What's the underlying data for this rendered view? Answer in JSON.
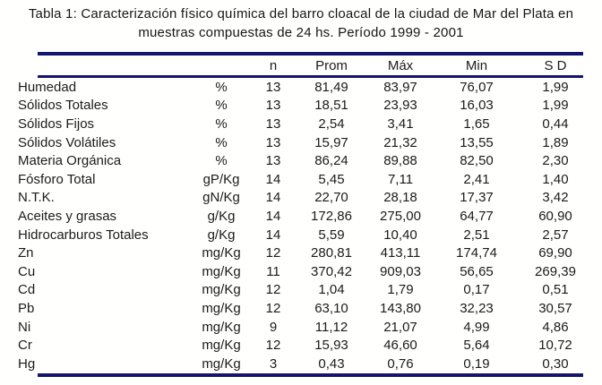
{
  "title": {
    "line1": "Tabla 1: Caracterización físico química del barro cloacal de la ciudad de Mar del Plata en",
    "line2": "muestras compuestas de 24 hs. Período 1999 - 2001"
  },
  "table": {
    "header": {
      "param": "",
      "unit": "",
      "n": "n",
      "prom": "Prom",
      "max": "Máx",
      "min": "Min",
      "sd": "S D"
    },
    "rows": [
      {
        "param": "Humedad",
        "unit": "%",
        "n": "13",
        "prom": "81,49",
        "max": "83,97",
        "min": "76,07",
        "sd": "1,99"
      },
      {
        "param": "Sólidos Totales",
        "unit": "%",
        "n": "13",
        "prom": "18,51",
        "max": "23,93",
        "min": "16,03",
        "sd": "1,99"
      },
      {
        "param": "Sólidos Fijos",
        "unit": "%",
        "n": "13",
        "prom": "2,54",
        "max": "3,41",
        "min": "1,65",
        "sd": "0,44"
      },
      {
        "param": "Sólidos Volátiles",
        "unit": "%",
        "n": "13",
        "prom": "15,97",
        "max": "21,32",
        "min": "13,55",
        "sd": "1,89"
      },
      {
        "param": "Materia Orgánica",
        "unit": "%",
        "n": "13",
        "prom": "86,24",
        "max": "89,88",
        "min": "82,50",
        "sd": "2,30"
      },
      {
        "param": "Fósforo Total",
        "unit": "gP/Kg",
        "n": "14",
        "prom": "5,45",
        "max": "7,11",
        "min": "2,41",
        "sd": "1,40"
      },
      {
        "param": "N.T.K.",
        "unit": "gN/Kg",
        "n": "14",
        "prom": "22,70",
        "max": "28,18",
        "min": "17,37",
        "sd": "3,42"
      },
      {
        "param": "Aceites y grasas",
        "unit": "g/Kg",
        "n": "14",
        "prom": "172,86",
        "max": "275,00",
        "min": "64,77",
        "sd": "60,90"
      },
      {
        "param": "Hidrocarburos Totales",
        "unit": "g/Kg",
        "n": "14",
        "prom": "5,59",
        "max": "10,40",
        "min": "2,51",
        "sd": "2,57"
      },
      {
        "param": "Zn",
        "unit": "mg/Kg",
        "n": "12",
        "prom": "280,81",
        "max": "413,11",
        "min": "174,74",
        "sd": "69,90"
      },
      {
        "param": "Cu",
        "unit": "mg/Kg",
        "n": "11",
        "prom": "370,42",
        "max": "909,03",
        "min": "56,65",
        "sd": "269,39"
      },
      {
        "param": "Cd",
        "unit": "mg/Kg",
        "n": "12",
        "prom": "1,04",
        "max": "1,79",
        "min": "0,17",
        "sd": "0,51"
      },
      {
        "param": "Pb",
        "unit": "mg/Kg",
        "n": "12",
        "prom": "63,10",
        "max": "143,80",
        "min": "32,23",
        "sd": "30,57"
      },
      {
        "param": "Ni",
        "unit": "mg/Kg",
        "n": "9",
        "prom": "11,12",
        "max": "21,07",
        "min": "4,99",
        "sd": "4,86"
      },
      {
        "param": "Cr",
        "unit": "mg/Kg",
        "n": "12",
        "prom": "15,93",
        "max": "46,60",
        "min": "5,64",
        "sd": "10,72"
      },
      {
        "param": "Hg",
        "unit": "mg/Kg",
        "n": "3",
        "prom": "0,43",
        "max": "0,76",
        "min": "0,19",
        "sd": "0,30"
      }
    ]
  },
  "colors": {
    "rule": "#14146b",
    "text": "#1b1b1b",
    "background": "#ffffff"
  }
}
